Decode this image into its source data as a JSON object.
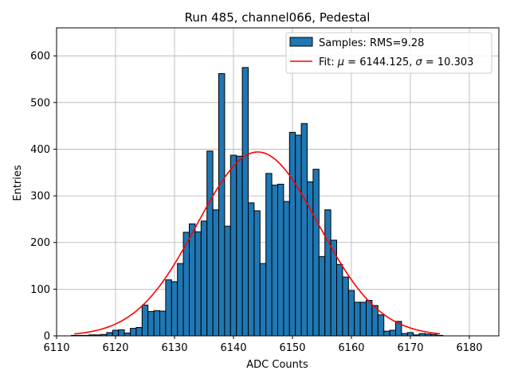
{
  "chart_data": {
    "type": "bar",
    "title": "Run 485, channel066, Pedestal",
    "xlabel": "ADC Counts",
    "ylabel": "Entries",
    "xlim": [
      6110,
      6185
    ],
    "ylim": [
      0,
      660
    ],
    "xticks": [
      6110,
      6120,
      6130,
      6140,
      6150,
      6160,
      6170,
      6180
    ],
    "yticks": [
      0,
      100,
      200,
      300,
      400,
      500,
      600
    ],
    "grid": true,
    "legend_position": "top-right",
    "bin_width": 1,
    "histogram": {
      "name": "Samples: RMS=9.28",
      "color": "#1f77b4",
      "edgecolor": "#000000",
      "bins": [
        [
          6113,
          1
        ],
        [
          6114,
          1
        ],
        [
          6115,
          1
        ],
        [
          6116,
          2
        ],
        [
          6117,
          2
        ],
        [
          6118,
          3
        ],
        [
          6119,
          7
        ],
        [
          6120,
          12
        ],
        [
          6121,
          13
        ],
        [
          6122,
          6
        ],
        [
          6123,
          16
        ],
        [
          6124,
          18
        ],
        [
          6125,
          66
        ],
        [
          6126,
          52
        ],
        [
          6127,
          54
        ],
        [
          6128,
          53
        ],
        [
          6129,
          120
        ],
        [
          6130,
          116
        ],
        [
          6131,
          155
        ],
        [
          6132,
          222
        ],
        [
          6133,
          240
        ],
        [
          6134,
          223
        ],
        [
          6135,
          246
        ],
        [
          6136,
          396
        ],
        [
          6137,
          270
        ],
        [
          6138,
          562
        ],
        [
          6139,
          235
        ],
        [
          6140,
          387
        ],
        [
          6141,
          385
        ],
        [
          6142,
          575
        ],
        [
          6143,
          285
        ],
        [
          6144,
          268
        ],
        [
          6145,
          155
        ],
        [
          6146,
          348
        ],
        [
          6147,
          323
        ],
        [
          6148,
          325
        ],
        [
          6149,
          288
        ],
        [
          6150,
          436
        ],
        [
          6151,
          430
        ],
        [
          6152,
          455
        ],
        [
          6153,
          330
        ],
        [
          6154,
          357
        ],
        [
          6155,
          170
        ],
        [
          6156,
          270
        ],
        [
          6157,
          205
        ],
        [
          6158,
          153
        ],
        [
          6159,
          126
        ],
        [
          6160,
          97
        ],
        [
          6161,
          72
        ],
        [
          6162,
          72
        ],
        [
          6163,
          76
        ],
        [
          6164,
          65
        ],
        [
          6165,
          45
        ],
        [
          6166,
          10
        ],
        [
          6167,
          12
        ],
        [
          6168,
          31
        ],
        [
          6169,
          5
        ],
        [
          6170,
          7
        ],
        [
          6171,
          2
        ],
        [
          6172,
          5
        ],
        [
          6173,
          4
        ],
        [
          6174,
          3
        ],
        [
          6175,
          1
        ]
      ]
    },
    "fit": {
      "name": "Fit: μ = 6144.125, σ = 10.303",
      "label_prefix": "Fit: ",
      "mu_symbol": "μ",
      "mu_text": " = 6144.125, ",
      "sigma_symbol": "σ",
      "sigma_text": " = 10.303",
      "mu": 6144.125,
      "sigma": 10.303,
      "amplitude": 394,
      "x_range": [
        6113,
        6175
      ],
      "color": "#ff0000"
    }
  }
}
